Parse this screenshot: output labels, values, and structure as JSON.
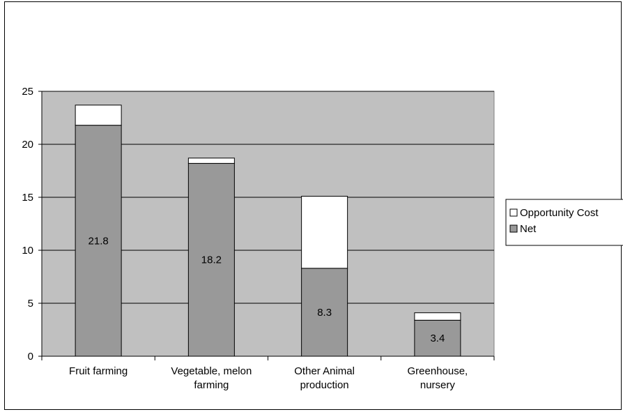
{
  "chart_data": {
    "type": "bar",
    "stacked": true,
    "title": "",
    "xlabel": "",
    "ylabel": "",
    "ylim": [
      0,
      25
    ],
    "yticks": [
      0,
      5,
      10,
      15,
      20,
      25
    ],
    "grid": true,
    "legend_placement": "right",
    "categories": [
      [
        "Fruit farming"
      ],
      [
        "Vegetable, melon",
        "farming"
      ],
      [
        "Other Animal",
        "production"
      ],
      [
        "Greenhouse,",
        "nursery"
      ]
    ],
    "series": [
      {
        "name": "Net",
        "values": [
          21.8,
          18.2,
          8.3,
          3.4
        ],
        "color": "#999999",
        "labels": [
          "21.8",
          "18.2",
          "8.3",
          "3.4"
        ]
      },
      {
        "name": "Opportunity Cost",
        "values": [
          1.9,
          0.5,
          6.8,
          0.7
        ],
        "color": "#ffffff"
      }
    ],
    "legend": [
      "Opportunity Cost",
      "Net"
    ],
    "plot_background": "#c0c0c0"
  }
}
